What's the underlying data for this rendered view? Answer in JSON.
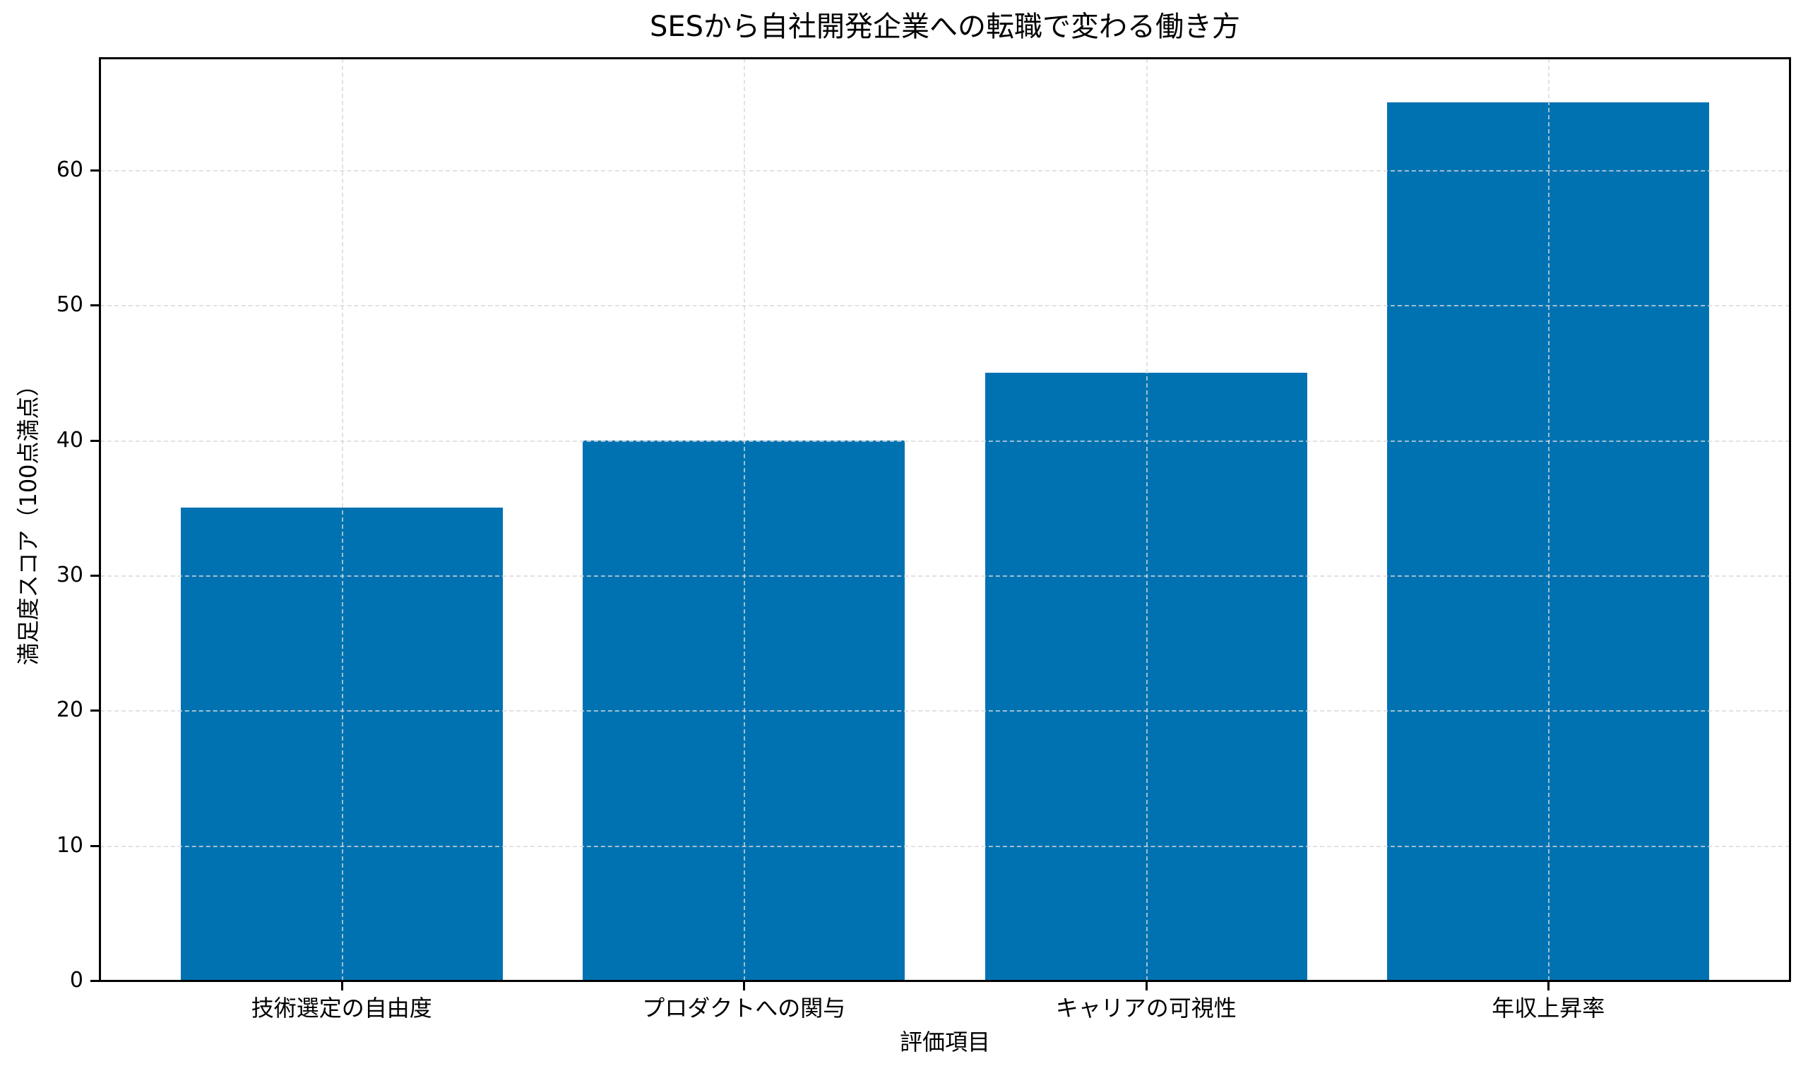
{
  "chart_data": {
    "type": "bar",
    "title": "SESから自社開発企業への転職で変わる働き方",
    "xlabel": "評価項目",
    "ylabel": "満足度スコア（100点満点）",
    "categories": [
      "技術選定の自由度",
      "プロダクトへの関与",
      "キャリアの可視性",
      "年収上昇率"
    ],
    "values": [
      35,
      40,
      45,
      65
    ],
    "ylim": [
      0,
      68.25
    ],
    "yticks": [
      0,
      10,
      20,
      30,
      40,
      50,
      60
    ],
    "grid": true,
    "grid_style": "dashed",
    "bar_color": "#0072B2",
    "legend": null
  }
}
